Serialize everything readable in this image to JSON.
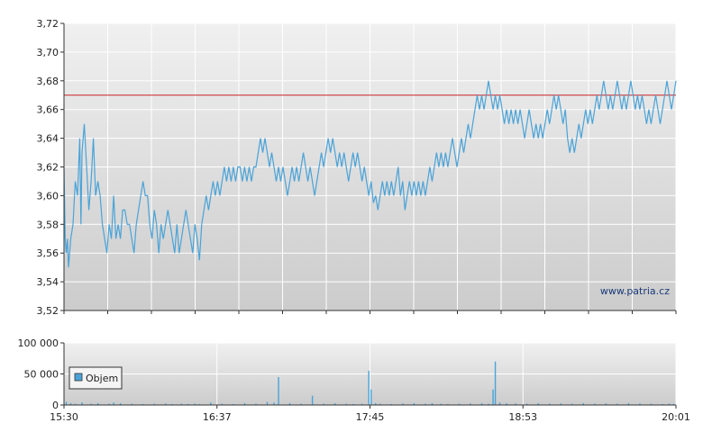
{
  "chart_data": [
    {
      "type": "line",
      "title": "",
      "ylim": [
        3.52,
        3.72
      ],
      "y_ticks": [
        "3,52",
        "3,54",
        "3,56",
        "3,58",
        "3,60",
        "3,62",
        "3,64",
        "3,66",
        "3,68",
        "3,70",
        "3,72"
      ],
      "reference_line": {
        "value": 3.67,
        "color": "#cc2222"
      },
      "line_color": "#4aa3d8",
      "watermark": "www.patria.cz",
      "grid": true,
      "x_range_minutes": [
        0,
        271
      ],
      "points": [
        [
          0,
          3.62
        ],
        [
          0.5,
          3.57
        ],
        [
          1,
          3.56
        ],
        [
          1.5,
          3.57
        ],
        [
          2,
          3.55
        ],
        [
          3,
          3.57
        ],
        [
          4,
          3.58
        ],
        [
          5,
          3.61
        ],
        [
          6,
          3.6
        ],
        [
          7,
          3.64
        ],
        [
          7.5,
          3.58
        ],
        [
          8,
          3.63
        ],
        [
          9,
          3.65
        ],
        [
          10,
          3.62
        ],
        [
          11,
          3.59
        ],
        [
          12,
          3.61
        ],
        [
          13,
          3.64
        ],
        [
          14,
          3.6
        ],
        [
          15,
          3.61
        ],
        [
          16,
          3.6
        ],
        [
          17,
          3.58
        ],
        [
          18,
          3.57
        ],
        [
          19,
          3.56
        ],
        [
          20,
          3.58
        ],
        [
          21,
          3.57
        ],
        [
          22,
          3.6
        ],
        [
          23,
          3.57
        ],
        [
          24,
          3.58
        ],
        [
          25,
          3.57
        ],
        [
          26,
          3.59
        ],
        [
          27,
          3.59
        ],
        [
          28,
          3.58
        ],
        [
          29,
          3.58
        ],
        [
          30,
          3.57
        ],
        [
          31,
          3.56
        ],
        [
          32,
          3.58
        ],
        [
          33,
          3.59
        ],
        [
          34,
          3.6
        ],
        [
          35,
          3.61
        ],
        [
          36,
          3.6
        ],
        [
          37,
          3.6
        ],
        [
          38,
          3.58
        ],
        [
          39,
          3.57
        ],
        [
          40,
          3.59
        ],
        [
          41,
          3.58
        ],
        [
          42,
          3.56
        ],
        [
          43,
          3.58
        ],
        [
          44,
          3.57
        ],
        [
          45,
          3.58
        ],
        [
          46,
          3.59
        ],
        [
          47,
          3.58
        ],
        [
          48,
          3.57
        ],
        [
          49,
          3.56
        ],
        [
          50,
          3.58
        ],
        [
          51,
          3.56
        ],
        [
          52,
          3.57
        ],
        [
          53,
          3.58
        ],
        [
          54,
          3.59
        ],
        [
          55,
          3.58
        ],
        [
          56,
          3.57
        ],
        [
          57,
          3.56
        ],
        [
          58,
          3.58
        ],
        [
          59,
          3.57
        ],
        [
          60,
          3.555
        ],
        [
          61,
          3.58
        ],
        [
          62,
          3.59
        ],
        [
          63,
          3.6
        ],
        [
          64,
          3.59
        ],
        [
          65,
          3.6
        ],
        [
          66,
          3.61
        ],
        [
          67,
          3.6
        ],
        [
          68,
          3.61
        ],
        [
          69,
          3.6
        ],
        [
          70,
          3.61
        ],
        [
          71,
          3.62
        ],
        [
          72,
          3.61
        ],
        [
          73,
          3.62
        ],
        [
          74,
          3.61
        ],
        [
          75,
          3.62
        ],
        [
          76,
          3.61
        ],
        [
          77,
          3.62
        ],
        [
          78,
          3.62
        ],
        [
          79,
          3.61
        ],
        [
          80,
          3.62
        ],
        [
          81,
          3.61
        ],
        [
          82,
          3.62
        ],
        [
          83,
          3.61
        ],
        [
          84,
          3.62
        ],
        [
          85,
          3.62
        ],
        [
          86,
          3.63
        ],
        [
          87,
          3.64
        ],
        [
          88,
          3.63
        ],
        [
          89,
          3.64
        ],
        [
          90,
          3.63
        ],
        [
          91,
          3.62
        ],
        [
          92,
          3.63
        ],
        [
          93,
          3.62
        ],
        [
          94,
          3.61
        ],
        [
          95,
          3.62
        ],
        [
          96,
          3.61
        ],
        [
          97,
          3.62
        ],
        [
          98,
          3.61
        ],
        [
          99,
          3.6
        ],
        [
          100,
          3.61
        ],
        [
          101,
          3.62
        ],
        [
          102,
          3.61
        ],
        [
          103,
          3.62
        ],
        [
          104,
          3.61
        ],
        [
          105,
          3.62
        ],
        [
          106,
          3.63
        ],
        [
          107,
          3.62
        ],
        [
          108,
          3.61
        ],
        [
          109,
          3.62
        ],
        [
          110,
          3.61
        ],
        [
          111,
          3.6
        ],
        [
          112,
          3.61
        ],
        [
          113,
          3.62
        ],
        [
          114,
          3.63
        ],
        [
          115,
          3.62
        ],
        [
          116,
          3.63
        ],
        [
          117,
          3.64
        ],
        [
          118,
          3.63
        ],
        [
          119,
          3.64
        ],
        [
          120,
          3.63
        ],
        [
          121,
          3.62
        ],
        [
          122,
          3.63
        ],
        [
          123,
          3.62
        ],
        [
          124,
          3.63
        ],
        [
          125,
          3.62
        ],
        [
          126,
          3.61
        ],
        [
          127,
          3.62
        ],
        [
          128,
          3.63
        ],
        [
          129,
          3.62
        ],
        [
          130,
          3.63
        ],
        [
          131,
          3.62
        ],
        [
          132,
          3.61
        ],
        [
          133,
          3.62
        ],
        [
          134,
          3.61
        ],
        [
          135,
          3.6
        ],
        [
          136,
          3.61
        ],
        [
          137,
          3.595
        ],
        [
          138,
          3.6
        ],
        [
          139,
          3.59
        ],
        [
          140,
          3.6
        ],
        [
          141,
          3.61
        ],
        [
          142,
          3.6
        ],
        [
          143,
          3.61
        ],
        [
          144,
          3.6
        ],
        [
          145,
          3.61
        ],
        [
          146,
          3.6
        ],
        [
          147,
          3.61
        ],
        [
          148,
          3.62
        ],
        [
          149,
          3.6
        ],
        [
          150,
          3.61
        ],
        [
          151,
          3.59
        ],
        [
          152,
          3.6
        ],
        [
          153,
          3.61
        ],
        [
          154,
          3.6
        ],
        [
          155,
          3.61
        ],
        [
          156,
          3.6
        ],
        [
          157,
          3.61
        ],
        [
          158,
          3.6
        ],
        [
          159,
          3.61
        ],
        [
          160,
          3.6
        ],
        [
          161,
          3.61
        ],
        [
          162,
          3.62
        ],
        [
          163,
          3.61
        ],
        [
          164,
          3.62
        ],
        [
          165,
          3.63
        ],
        [
          166,
          3.62
        ],
        [
          167,
          3.63
        ],
        [
          168,
          3.62
        ],
        [
          169,
          3.63
        ],
        [
          170,
          3.62
        ],
        [
          171,
          3.63
        ],
        [
          172,
          3.64
        ],
        [
          173,
          3.63
        ],
        [
          174,
          3.62
        ],
        [
          175,
          3.63
        ],
        [
          176,
          3.64
        ],
        [
          177,
          3.63
        ],
        [
          178,
          3.64
        ],
        [
          179,
          3.65
        ],
        [
          180,
          3.64
        ],
        [
          181,
          3.65
        ],
        [
          182,
          3.66
        ],
        [
          183,
          3.67
        ],
        [
          184,
          3.66
        ],
        [
          185,
          3.67
        ],
        [
          186,
          3.66
        ],
        [
          187,
          3.67
        ],
        [
          188,
          3.68
        ],
        [
          189,
          3.67
        ],
        [
          190,
          3.66
        ],
        [
          191,
          3.67
        ],
        [
          192,
          3.66
        ],
        [
          193,
          3.67
        ],
        [
          194,
          3.66
        ],
        [
          195,
          3.65
        ],
        [
          196,
          3.66
        ],
        [
          197,
          3.65
        ],
        [
          198,
          3.66
        ],
        [
          199,
          3.65
        ],
        [
          200,
          3.66
        ],
        [
          201,
          3.65
        ],
        [
          202,
          3.66
        ],
        [
          203,
          3.65
        ],
        [
          204,
          3.64
        ],
        [
          205,
          3.65
        ],
        [
          206,
          3.66
        ],
        [
          207,
          3.65
        ],
        [
          208,
          3.64
        ],
        [
          209,
          3.65
        ],
        [
          210,
          3.64
        ],
        [
          211,
          3.65
        ],
        [
          212,
          3.64
        ],
        [
          213,
          3.65
        ],
        [
          214,
          3.66
        ],
        [
          215,
          3.65
        ],
        [
          216,
          3.66
        ],
        [
          217,
          3.67
        ],
        [
          218,
          3.66
        ],
        [
          219,
          3.67
        ],
        [
          220,
          3.66
        ],
        [
          221,
          3.65
        ],
        [
          222,
          3.66
        ],
        [
          223,
          3.64
        ],
        [
          224,
          3.63
        ],
        [
          225,
          3.64
        ],
        [
          226,
          3.63
        ],
        [
          227,
          3.64
        ],
        [
          228,
          3.65
        ],
        [
          229,
          3.64
        ],
        [
          230,
          3.65
        ],
        [
          231,
          3.66
        ],
        [
          232,
          3.65
        ],
        [
          233,
          3.66
        ],
        [
          234,
          3.65
        ],
        [
          235,
          3.66
        ],
        [
          236,
          3.67
        ],
        [
          237,
          3.66
        ],
        [
          238,
          3.67
        ],
        [
          239,
          3.68
        ],
        [
          240,
          3.67
        ],
        [
          241,
          3.66
        ],
        [
          242,
          3.67
        ],
        [
          243,
          3.66
        ],
        [
          244,
          3.67
        ],
        [
          245,
          3.68
        ],
        [
          246,
          3.67
        ],
        [
          247,
          3.66
        ],
        [
          248,
          3.67
        ],
        [
          249,
          3.66
        ],
        [
          250,
          3.67
        ],
        [
          251,
          3.68
        ],
        [
          252,
          3.67
        ],
        [
          253,
          3.66
        ],
        [
          254,
          3.67
        ],
        [
          255,
          3.66
        ],
        [
          256,
          3.67
        ],
        [
          257,
          3.66
        ],
        [
          258,
          3.65
        ],
        [
          259,
          3.66
        ],
        [
          260,
          3.65
        ],
        [
          261,
          3.66
        ],
        [
          262,
          3.67
        ],
        [
          263,
          3.66
        ],
        [
          264,
          3.65
        ],
        [
          265,
          3.66
        ],
        [
          266,
          3.67
        ],
        [
          267,
          3.68
        ],
        [
          268,
          3.67
        ],
        [
          269,
          3.66
        ],
        [
          270,
          3.67
        ],
        [
          271,
          3.68
        ]
      ]
    },
    {
      "type": "bar",
      "title": "",
      "legend": {
        "label": "Objem",
        "color": "#4aa3d8",
        "placement": "left"
      },
      "ylim": [
        0,
        100000
      ],
      "y_ticks": [
        "0",
        "50 000",
        "100 000"
      ],
      "x_ticks": [
        "15:30",
        "16:37",
        "17:45",
        "18:53",
        "20:01"
      ],
      "bar_color": "#4aa3d8",
      "x_range_minutes": [
        0,
        271
      ],
      "bars": [
        [
          1,
          5000
        ],
        [
          3,
          3000
        ],
        [
          5,
          2000
        ],
        [
          8,
          4000
        ],
        [
          12,
          2000
        ],
        [
          15,
          3000
        ],
        [
          20,
          2000
        ],
        [
          22,
          4000
        ],
        [
          25,
          3000
        ],
        [
          30,
          2000
        ],
        [
          35,
          1500
        ],
        [
          40,
          2000
        ],
        [
          45,
          2500
        ],
        [
          48,
          1500
        ],
        [
          52,
          2000
        ],
        [
          55,
          1500
        ],
        [
          58,
          2000
        ],
        [
          60,
          1500
        ],
        [
          65,
          4000
        ],
        [
          70,
          2000
        ],
        [
          75,
          1500
        ],
        [
          80,
          3000
        ],
        [
          85,
          2000
        ],
        [
          90,
          5000
        ],
        [
          93,
          4000
        ],
        [
          95,
          45000
        ],
        [
          100,
          3000
        ],
        [
          105,
          2000
        ],
        [
          110,
          15000
        ],
        [
          115,
          2000
        ],
        [
          120,
          3000
        ],
        [
          125,
          2000
        ],
        [
          128,
          1500
        ],
        [
          132,
          2000
        ],
        [
          135,
          55000
        ],
        [
          136,
          25000
        ],
        [
          138,
          3000
        ],
        [
          140,
          2000
        ],
        [
          145,
          1500
        ],
        [
          150,
          2500
        ],
        [
          155,
          3000
        ],
        [
          160,
          2000
        ],
        [
          163,
          3000
        ],
        [
          167,
          2000
        ],
        [
          170,
          1500
        ],
        [
          175,
          2000
        ],
        [
          180,
          2500
        ],
        [
          185,
          3000
        ],
        [
          188,
          2000
        ],
        [
          190,
          25000
        ],
        [
          191,
          70000
        ],
        [
          193,
          4000
        ],
        [
          196,
          3000
        ],
        [
          200,
          2500
        ],
        [
          205,
          2000
        ],
        [
          210,
          3000
        ],
        [
          215,
          2000
        ],
        [
          220,
          2500
        ],
        [
          225,
          2000
        ],
        [
          230,
          3000
        ],
        [
          235,
          2000
        ],
        [
          240,
          2500
        ],
        [
          245,
          2000
        ],
        [
          250,
          3000
        ],
        [
          255,
          2500
        ],
        [
          260,
          2000
        ],
        [
          265,
          1500
        ],
        [
          268,
          2000
        ],
        [
          270,
          1500
        ]
      ]
    }
  ]
}
